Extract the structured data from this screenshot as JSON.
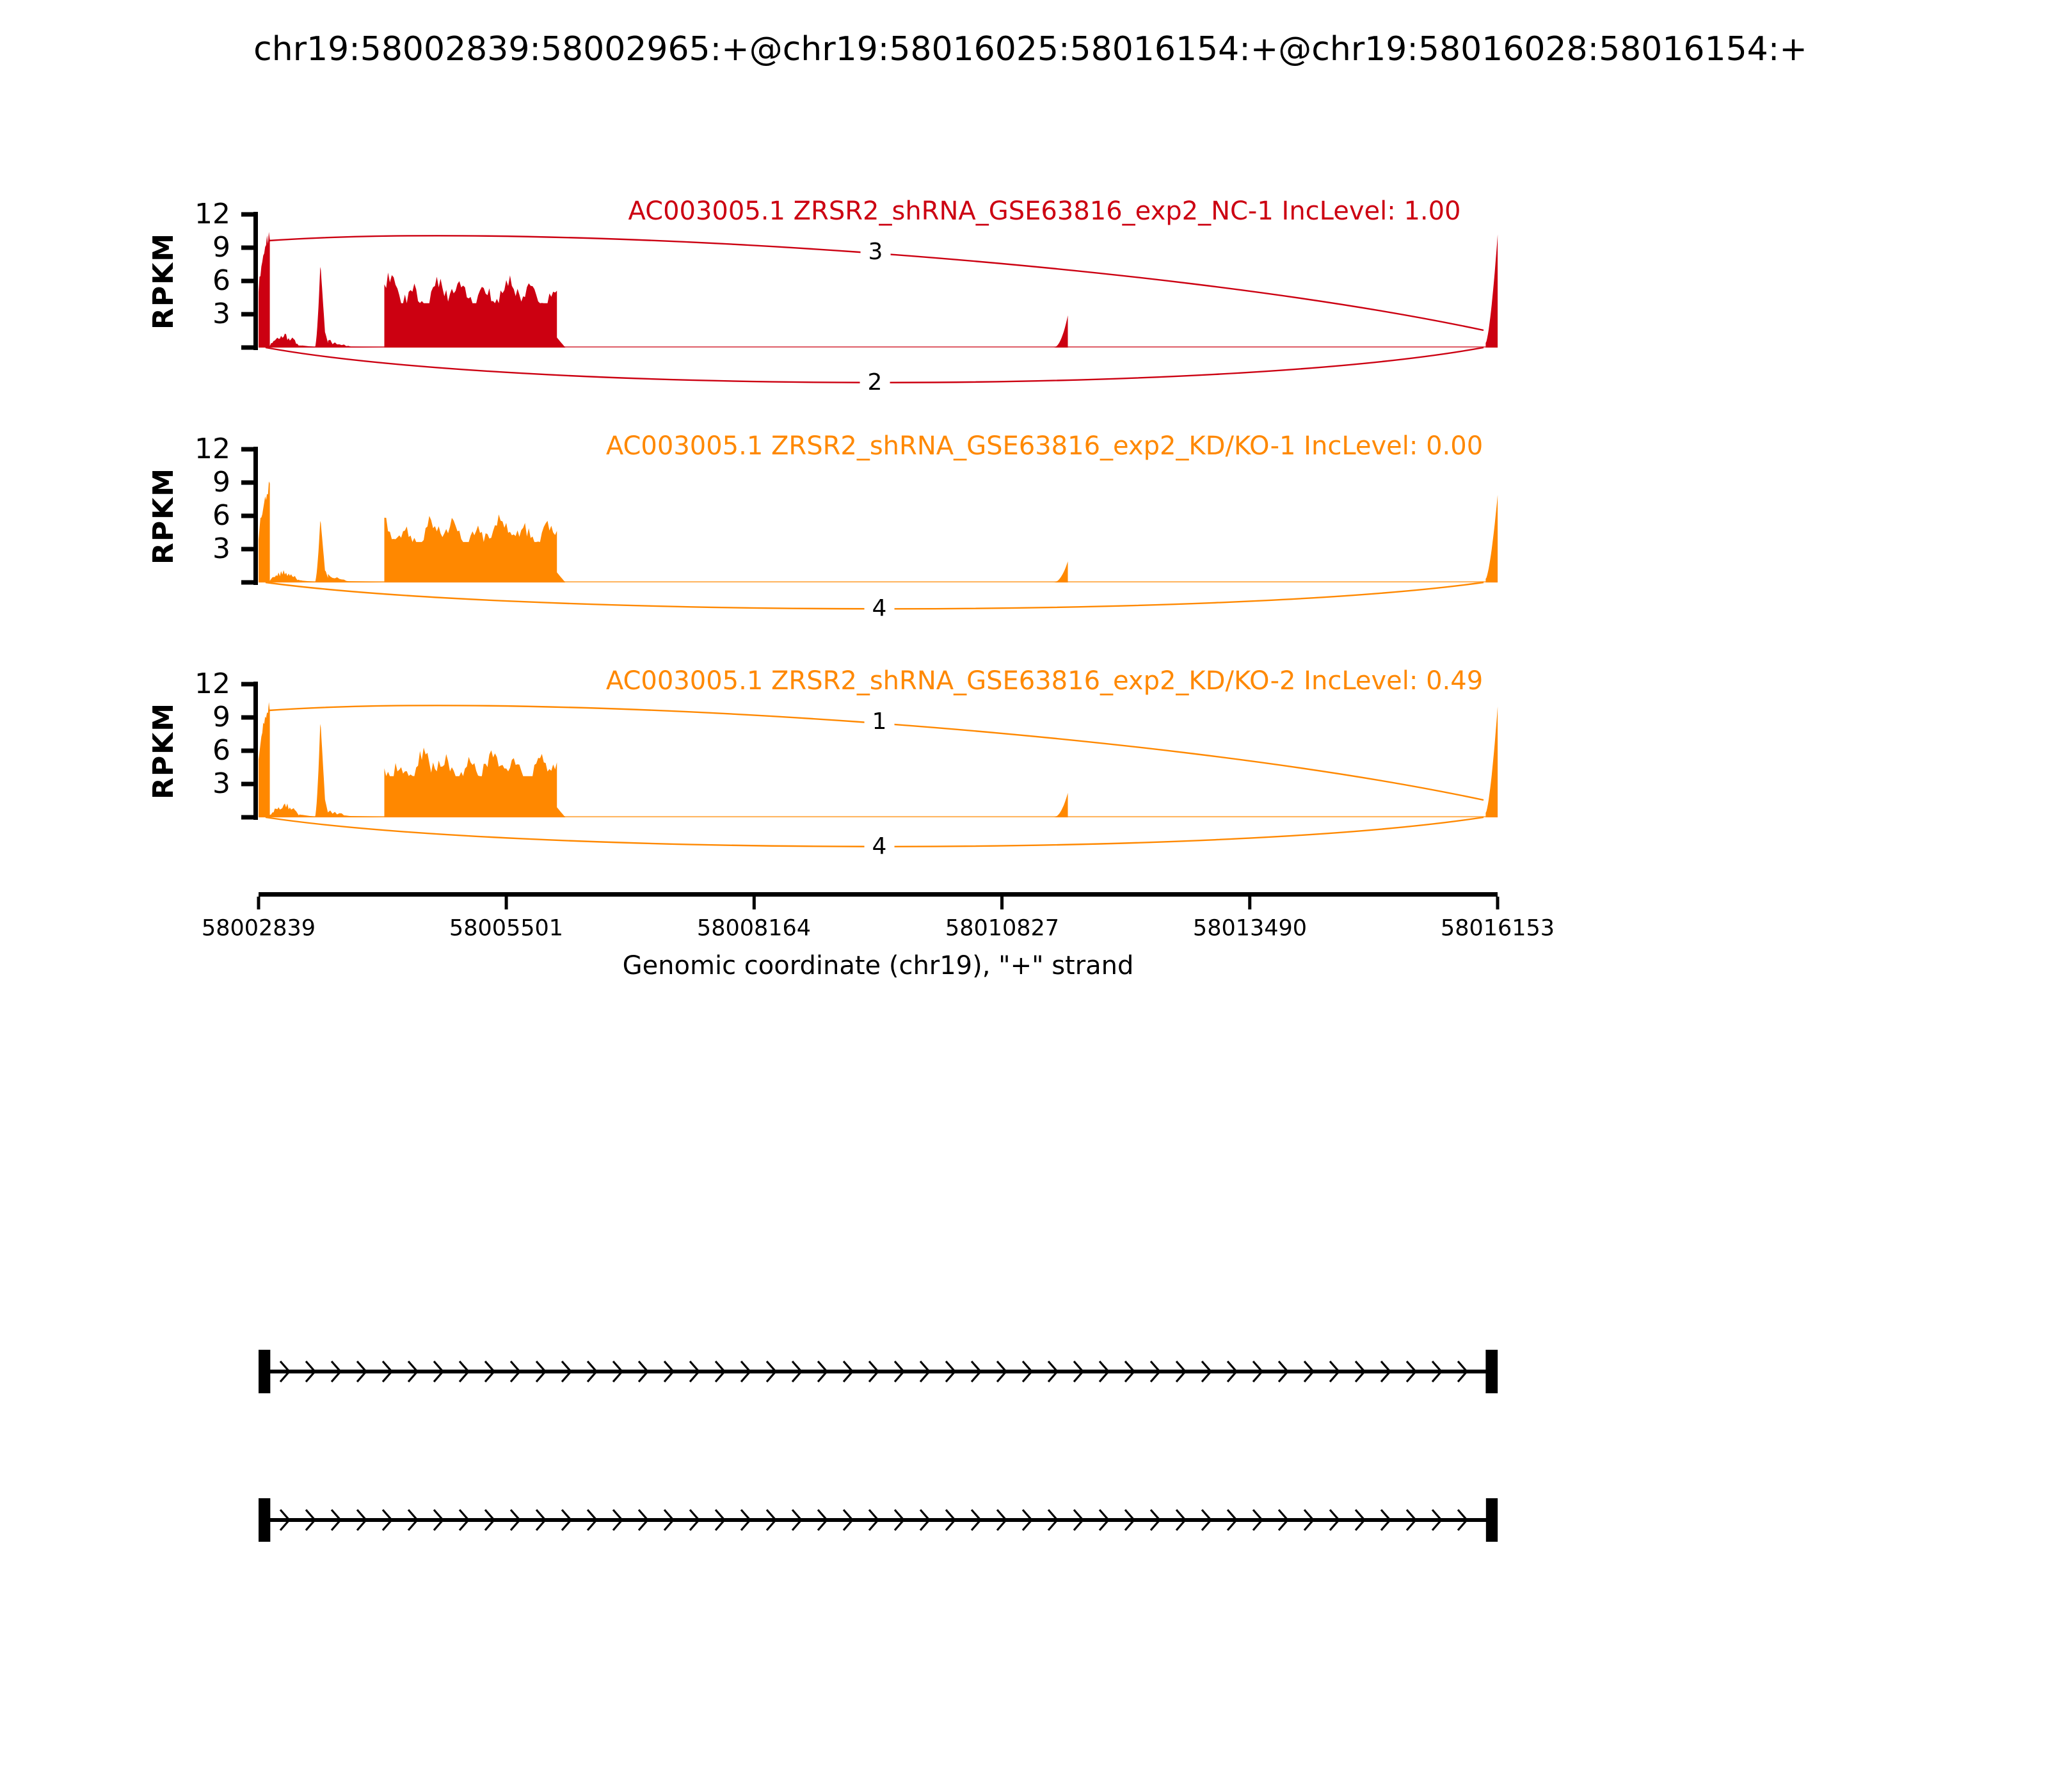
{
  "title": "chr19:58002839:58002965:+@chr19:58016025:58016154:+@chr19:58016028:58016154:+",
  "chart_data": {
    "type": "area",
    "subtype": "sashimi_plot",
    "x_label": "Genomic coordinate (chr19), \"+\" strand",
    "x_domain": [
      58002839,
      58016153
    ],
    "x_ticks": [
      58002839,
      58005501,
      58008164,
      58010827,
      58013490,
      58016153
    ],
    "x_tick_labels": [
      "58002839",
      "58005501",
      "58008164",
      "58010827",
      "58013490",
      "58016153"
    ],
    "y_label": "RPKM",
    "y_max": 12,
    "y_ticks": [
      12,
      9,
      6,
      3
    ],
    "y_tick_labels": [
      "12",
      "9",
      "6",
      "3"
    ],
    "grid": false,
    "legend": "none",
    "regions": {
      "exon1": [
        58002839,
        58002960
      ],
      "noise1": [
        58002960,
        58003310
      ],
      "spike2": [
        58003444,
        58003585
      ],
      "spike2_tail": [
        58003585,
        58003830
      ],
      "block": [
        58004190,
        58006045
      ],
      "block_tail": [
        58006045,
        58006135
      ],
      "mid_spike": [
        58011380,
        58011535
      ],
      "exon_last": [
        58016025,
        58016154
      ]
    },
    "tracks": [
      {
        "gene": "AC003005.1",
        "sample": "ZRSR2_shRNA_GSE63816_exp2_NC-1",
        "inc_level": "1.00",
        "label": "AC003005.1 ZRSR2_shRNA_GSE63816_exp2_NC-1 IncLevel: 1.00",
        "color": "#CC0011",
        "coverage_rpkm": {
          "exon1_peak": 10.9,
          "noise_level": 1.0,
          "spike2_peak": 7.6,
          "block_level": 5.7,
          "mid_spike_peak": 2.9,
          "exon_last_peak": 10.2
        },
        "junctions": [
          {
            "side": "top",
            "span": [
              58002965,
              58016025
            ],
            "count": "3"
          },
          {
            "side": "bottom",
            "span": [
              58002965,
              58016028
            ],
            "count": "2"
          }
        ]
      },
      {
        "gene": "AC003005.1",
        "sample": "ZRSR2_shRNA_GSE63816_exp2_KD/KO-1",
        "inc_level": "0.00",
        "label": "AC003005.1 ZRSR2_shRNA_GSE63816_exp2_KD/KO-1 IncLevel: 0.00",
        "color": "#FF8800",
        "coverage_rpkm": {
          "exon1_peak": 9.3,
          "noise_level": 0.85,
          "spike2_peak": 5.8,
          "block_level": 5.2,
          "mid_spike_peak": 1.9,
          "exon_last_peak": 7.9
        },
        "junctions": [
          {
            "side": "bottom",
            "span": [
              58002965,
              58016028
            ],
            "count": "4"
          }
        ]
      },
      {
        "gene": "AC003005.1",
        "sample": "ZRSR2_shRNA_GSE63816_exp2_KD/KO-2",
        "inc_level": "0.49",
        "label": "AC003005.1 ZRSR2_shRNA_GSE63816_exp2_KD/KO-2 IncLevel: 0.49",
        "color": "#FF8800",
        "coverage_rpkm": {
          "exon1_peak": 10.8,
          "noise_level": 1.0,
          "spike2_peak": 8.8,
          "block_level": 5.3,
          "mid_spike_peak": 2.2,
          "exon_last_peak": 10.0
        },
        "junctions": [
          {
            "side": "top",
            "span": [
              58002965,
              58016025
            ],
            "count": "1"
          },
          {
            "side": "bottom",
            "span": [
              58002965,
              58016028
            ],
            "count": "4"
          }
        ]
      }
    ],
    "isoforms": [
      {
        "strand": "+",
        "exons": [
          [
            58002839,
            58002965
          ],
          [
            58016025,
            58016154
          ]
        ]
      },
      {
        "strand": "+",
        "exons": [
          [
            58002839,
            58002965
          ],
          [
            58016028,
            58016154
          ]
        ]
      }
    ]
  }
}
